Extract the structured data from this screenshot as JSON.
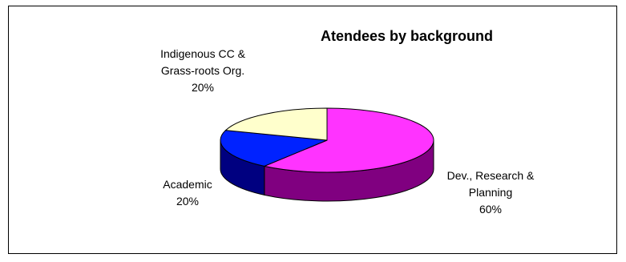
{
  "chart_data": {
    "type": "pie",
    "title": "Atendees by background",
    "slices": [
      {
        "name": "Dev., Research & Planning",
        "value": 60,
        "label_lines": [
          "Dev., Research &",
          "Planning"
        ],
        "pct": "60%",
        "top_color": "#FF33FF",
        "side_color": "#800080"
      },
      {
        "name": "Academic",
        "value": 20,
        "label_lines": [
          "Academic"
        ],
        "pct": "20%",
        "top_color": "#0022FF",
        "side_color": "#000080"
      },
      {
        "name": "Indigenous CC & Grass-roots Org.",
        "value": 20,
        "label_lines": [
          "Indigenous CC &",
          "Grass-roots Org."
        ],
        "pct": "20%",
        "top_color": "#FFFFCC",
        "side_color": "#999977"
      }
    ],
    "view": "3d",
    "legend": "none"
  }
}
